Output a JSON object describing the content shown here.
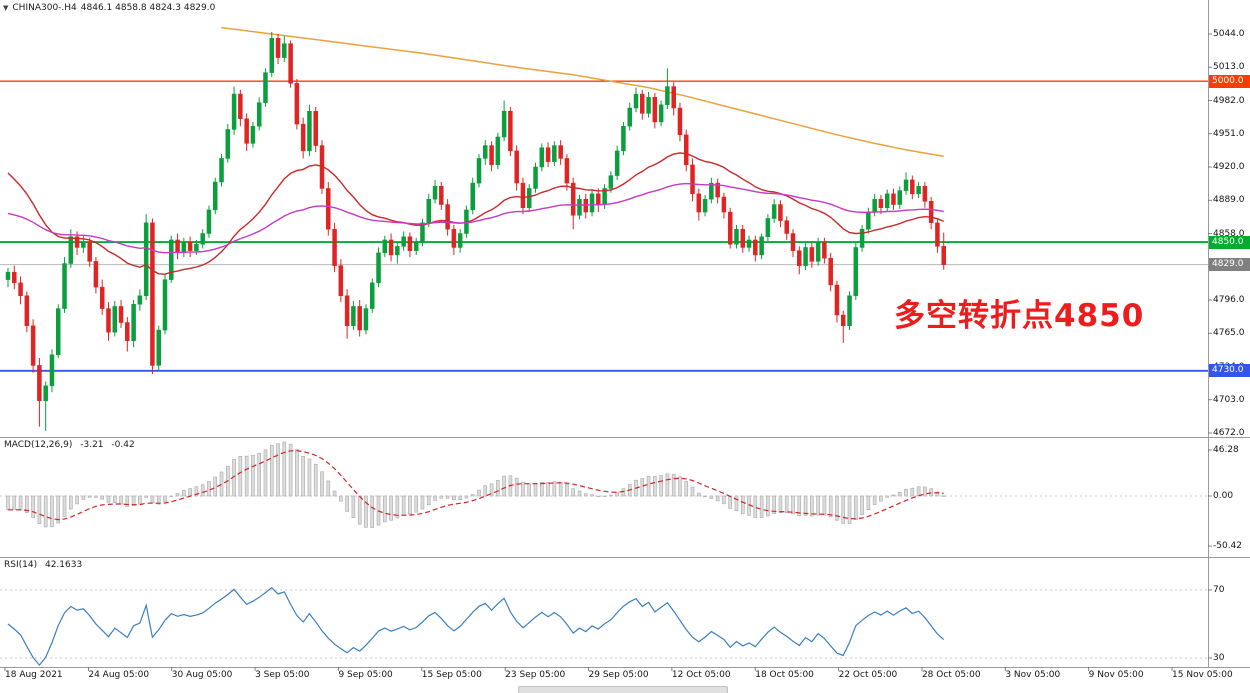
{
  "window": {
    "bg": "#ffffff"
  },
  "header": {
    "dropdown_icon": "▼",
    "symbol": "CHINA300-.H4",
    "ohlc": "4846.1 4858.8 4824.3 4829.0"
  },
  "annotation": {
    "text": "多空转折点4850",
    "color": "#ee1d1d"
  },
  "macd_panel": {
    "label": "MACD(12,26,9)",
    "value_main": "-3.21",
    "value_signal": "-0.42"
  },
  "rsi_panel": {
    "label": "RSI(14)",
    "value": "42.1633"
  },
  "time_axis": {
    "labels": [
      "18 Aug 2021",
      "24 Aug 05:00",
      "30 Aug 05:00",
      "3 Sep 05:00",
      "9 Sep 05:00",
      "15 Sep 05:00",
      "23 Sep 05:00",
      "29 Sep 05:00",
      "12 Oct 05:00",
      "18 Oct 05:00",
      "22 Oct 05:00",
      "28 Oct 05:00",
      "3 Nov 05:00",
      "9 Nov 05:00",
      "15 Nov 05:00"
    ]
  },
  "chart_data": {
    "type": "candlestick",
    "title": "CHINA300-.H4",
    "ylim": [
      4672,
      5075
    ],
    "y_ticks": [
      5044,
      5013,
      4982,
      4951,
      4920,
      4889,
      4858,
      4827,
      4796,
      4765,
      4734,
      4703,
      4672
    ],
    "colors": {
      "up": "#0a9e3c",
      "down": "#df2423"
    },
    "levels": [
      {
        "name": "resistance-line",
        "label": "5000.0",
        "price": 5000,
        "color": "#ff3c00",
        "width": 1.3
      },
      {
        "name": "pivot-line",
        "label": "4850.0",
        "price": 4850,
        "color": "#00ad2e",
        "width": 1.8
      },
      {
        "name": "current-price",
        "label": "4829.0",
        "price": 4829,
        "color": "#808080",
        "line_color": "#b9b9b9",
        "width": 1
      },
      {
        "name": "support-line",
        "label": "4730.0",
        "price": 4730,
        "color": "#3355ee",
        "width": 1.8
      }
    ],
    "ma_overlays": [
      {
        "name": "ma-fast-red",
        "period": 34,
        "seed": 4920,
        "color": "#c82a2a"
      },
      {
        "name": "ma-slow-magenta",
        "period": 90,
        "seed": 4878,
        "color": "#c63ac6"
      }
    ],
    "orange_ma": {
      "name": "ma-long-orange",
      "color": "#e8a33c",
      "points": [
        [
          34,
          5050
        ],
        [
          42,
          5044
        ],
        [
          50,
          5038
        ],
        [
          58,
          5032
        ],
        [
          66,
          5026
        ],
        [
          74,
          5019
        ],
        [
          82,
          5012
        ],
        [
          90,
          5006
        ],
        [
          96,
          5000
        ],
        [
          102,
          4994
        ],
        [
          108,
          4986
        ],
        [
          114,
          4977
        ],
        [
          120,
          4968
        ],
        [
          126,
          4959
        ],
        [
          132,
          4950
        ],
        [
          138,
          4942
        ],
        [
          143,
          4936
        ],
        [
          146,
          4933
        ],
        [
          149,
          4930
        ]
      ]
    },
    "macd": {
      "params": "12,26,9",
      "scale_max": 46.28,
      "scale_min": -50.42,
      "histogram_color": "#dcdcdc",
      "histogram_edge": "#a8a8a8",
      "signal_color": "#cf2727"
    },
    "rsi": {
      "period": 14,
      "levels": [
        70,
        30
      ],
      "line_color": "#3a7fc1"
    },
    "candles": [
      [
        4815,
        4826,
        4808,
        4822
      ],
      [
        4822,
        4828,
        4806,
        4812
      ],
      [
        4812,
        4818,
        4792,
        4800
      ],
      [
        4800,
        4804,
        4766,
        4772
      ],
      [
        4772,
        4778,
        4728,
        4735
      ],
      [
        4735,
        4742,
        4678,
        4702
      ],
      [
        4702,
        4720,
        4674,
        4716
      ],
      [
        4716,
        4750,
        4710,
        4745
      ],
      [
        4745,
        4792,
        4742,
        4788
      ],
      [
        4788,
        4836,
        4784,
        4830
      ],
      [
        4830,
        4862,
        4826,
        4855
      ],
      [
        4855,
        4860,
        4838,
        4845
      ],
      [
        4845,
        4856,
        4840,
        4850
      ],
      [
        4850,
        4854,
        4827,
        4832
      ],
      [
        4832,
        4836,
        4802,
        4808
      ],
      [
        4808,
        4815,
        4782,
        4788
      ],
      [
        4788,
        4794,
        4758,
        4766
      ],
      [
        4766,
        4795,
        4762,
        4790
      ],
      [
        4790,
        4796,
        4770,
        4775
      ],
      [
        4775,
        4780,
        4748,
        4758
      ],
      [
        4758,
        4796,
        4752,
        4792
      ],
      [
        4792,
        4806,
        4786,
        4800
      ],
      [
        4800,
        4876,
        4796,
        4868
      ],
      [
        4868,
        4872,
        4727,
        4735
      ],
      [
        4735,
        4772,
        4730,
        4768
      ],
      [
        4768,
        4820,
        4764,
        4815
      ],
      [
        4815,
        4856,
        4812,
        4852
      ],
      [
        4852,
        4858,
        4834,
        4840
      ],
      [
        4840,
        4854,
        4836,
        4850
      ],
      [
        4850,
        4855,
        4836,
        4842
      ],
      [
        4842,
        4852,
        4838,
        4848
      ],
      [
        4848,
        4862,
        4844,
        4858
      ],
      [
        4858,
        4884,
        4854,
        4880
      ],
      [
        4880,
        4910,
        4876,
        4906
      ],
      [
        4906,
        4932,
        4902,
        4928
      ],
      [
        4928,
        4960,
        4924,
        4955
      ],
      [
        4955,
        4995,
        4950,
        4988
      ],
      [
        4988,
        4992,
        4958,
        4965
      ],
      [
        4965,
        4970,
        4935,
        4942
      ],
      [
        4942,
        4962,
        4938,
        4958
      ],
      [
        4958,
        4985,
        4954,
        4980
      ],
      [
        4980,
        5012,
        4976,
        5008
      ],
      [
        5008,
        5046,
        5004,
        5040
      ],
      [
        5040,
        5044,
        5016,
        5022
      ],
      [
        5022,
        5042,
        5018,
        5035
      ],
      [
        5035,
        5038,
        4994,
        4998
      ],
      [
        4998,
        5002,
        4955,
        4960
      ],
      [
        4960,
        4966,
        4928,
        4935
      ],
      [
        4935,
        4978,
        4930,
        4972
      ],
      [
        4972,
        4976,
        4934,
        4940
      ],
      [
        4940,
        4945,
        4895,
        4900
      ],
      [
        4900,
        4906,
        4856,
        4862
      ],
      [
        4862,
        4868,
        4822,
        4828
      ],
      [
        4828,
        4834,
        4794,
        4800
      ],
      [
        4800,
        4806,
        4760,
        4772
      ],
      [
        4772,
        4795,
        4768,
        4790
      ],
      [
        4790,
        4796,
        4762,
        4768
      ],
      [
        4768,
        4792,
        4764,
        4788
      ],
      [
        4788,
        4816,
        4784,
        4812
      ],
      [
        4812,
        4845,
        4808,
        4840
      ],
      [
        4840,
        4856,
        4836,
        4852
      ],
      [
        4852,
        4858,
        4832,
        4838
      ],
      [
        4838,
        4850,
        4830,
        4846
      ],
      [
        4846,
        4860,
        4842,
        4855
      ],
      [
        4855,
        4859,
        4836,
        4842
      ],
      [
        4842,
        4854,
        4838,
        4850
      ],
      [
        4850,
        4872,
        4846,
        4868
      ],
      [
        4868,
        4895,
        4864,
        4890
      ],
      [
        4890,
        4908,
        4886,
        4902
      ],
      [
        4902,
        4906,
        4880,
        4885
      ],
      [
        4885,
        4890,
        4856,
        4862
      ],
      [
        4862,
        4866,
        4838,
        4845
      ],
      [
        4845,
        4862,
        4840,
        4858
      ],
      [
        4858,
        4884,
        4854,
        4880
      ],
      [
        4880,
        4910,
        4876,
        4905
      ],
      [
        4905,
        4932,
        4901,
        4928
      ],
      [
        4928,
        4945,
        4922,
        4940
      ],
      [
        4940,
        4944,
        4916,
        4922
      ],
      [
        4922,
        4952,
        4918,
        4948
      ],
      [
        4948,
        4982,
        4944,
        4972
      ],
      [
        4972,
        4976,
        4930,
        4935
      ],
      [
        4935,
        4940,
        4898,
        4905
      ],
      [
        4905,
        4910,
        4876,
        4882
      ],
      [
        4882,
        4904,
        4878,
        4900
      ],
      [
        4900,
        4924,
        4896,
        4920
      ],
      [
        4920,
        4942,
        4916,
        4938
      ],
      [
        4938,
        4943,
        4920,
        4925
      ],
      [
        4925,
        4944,
        4921,
        4940
      ],
      [
        4940,
        4945,
        4922,
        4928
      ],
      [
        4928,
        4932,
        4898,
        4905
      ],
      [
        4905,
        4910,
        4862,
        4875
      ],
      [
        4875,
        4894,
        4871,
        4890
      ],
      [
        4890,
        4895,
        4872,
        4878
      ],
      [
        4878,
        4899,
        4874,
        4895
      ],
      [
        4895,
        4900,
        4878,
        4885
      ],
      [
        4885,
        4904,
        4881,
        4900
      ],
      [
        4900,
        4916,
        4896,
        4912
      ],
      [
        4912,
        4940,
        4908,
        4935
      ],
      [
        4935,
        4962,
        4931,
        4958
      ],
      [
        4958,
        4980,
        4954,
        4975
      ],
      [
        4975,
        4994,
        4971,
        4988
      ],
      [
        4988,
        4992,
        4964,
        4970
      ],
      [
        4970,
        4990,
        4966,
        4985
      ],
      [
        4985,
        4989,
        4956,
        4962
      ],
      [
        4962,
        4982,
        4958,
        4978
      ],
      [
        4978,
        5012,
        4974,
        4995
      ],
      [
        4995,
        4999,
        4968,
        4975
      ],
      [
        4975,
        4980,
        4944,
        4950
      ],
      [
        4950,
        4955,
        4916,
        4922
      ],
      [
        4922,
        4928,
        4888,
        4895
      ],
      [
        4895,
        4900,
        4870,
        4878
      ],
      [
        4878,
        4894,
        4874,
        4890
      ],
      [
        4890,
        4910,
        4886,
        4905
      ],
      [
        4905,
        4909,
        4886,
        4892
      ],
      [
        4892,
        4896,
        4872,
        4878
      ],
      [
        4878,
        4882,
        4844,
        4848
      ],
      [
        4848,
        4866,
        4844,
        4862
      ],
      [
        4862,
        4866,
        4840,
        4845
      ],
      [
        4845,
        4856,
        4841,
        4852
      ],
      [
        4852,
        4856,
        4832,
        4838
      ],
      [
        4838,
        4858,
        4834,
        4855
      ],
      [
        4855,
        4876,
        4851,
        4872
      ],
      [
        4872,
        4890,
        4868,
        4885
      ],
      [
        4885,
        4889,
        4864,
        4870
      ],
      [
        4870,
        4874,
        4852,
        4858
      ],
      [
        4858,
        4862,
        4836,
        4842
      ],
      [
        4842,
        4846,
        4820,
        4828
      ],
      [
        4828,
        4849,
        4824,
        4845
      ],
      [
        4845,
        4850,
        4826,
        4832
      ],
      [
        4832,
        4854,
        4828,
        4850
      ],
      [
        4850,
        4854,
        4830,
        4835
      ],
      [
        4835,
        4840,
        4804,
        4810
      ],
      [
        4810,
        4814,
        4775,
        4782
      ],
      [
        4782,
        4786,
        4756,
        4772
      ],
      [
        4772,
        4804,
        4768,
        4800
      ],
      [
        4800,
        4850,
        4796,
        4845
      ],
      [
        4845,
        4866,
        4841,
        4862
      ],
      [
        4862,
        4882,
        4858,
        4878
      ],
      [
        4878,
        4895,
        4874,
        4890
      ],
      [
        4890,
        4894,
        4876,
        4882
      ],
      [
        4882,
        4899,
        4878,
        4895
      ],
      [
        4895,
        4900,
        4880,
        4885
      ],
      [
        4885,
        4902,
        4881,
        4898
      ],
      [
        4898,
        4915,
        4894,
        4908
      ],
      [
        4908,
        4912,
        4890,
        4895
      ],
      [
        4895,
        4906,
        4891,
        4902
      ],
      [
        4902,
        4906,
        4882,
        4888
      ],
      [
        4888,
        4892,
        4862,
        4868
      ],
      [
        4868,
        4872,
        4840,
        4846
      ],
      [
        4846.1,
        4858.8,
        4824.3,
        4829.0
      ]
    ]
  }
}
